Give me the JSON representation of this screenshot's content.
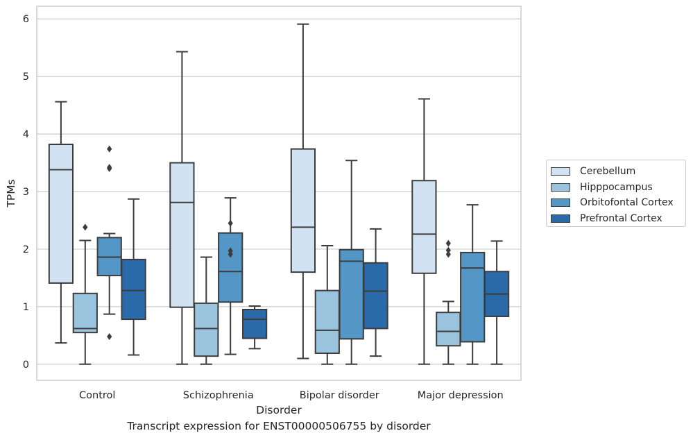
{
  "chart_data": {
    "type": "box",
    "xlabel": "Disorder",
    "ylabel": "TPMs",
    "ylim": [
      -0.28,
      6.22
    ],
    "yticks": [
      0,
      1,
      2,
      3,
      4,
      5,
      6
    ],
    "grid": "horizontal",
    "legend_position": "right",
    "categories": [
      "Control",
      "Schizophrenia",
      "Bipolar disorder",
      "Major depression"
    ],
    "series": [
      {
        "name": "Cerebellum",
        "color": "#d1e2f2",
        "boxes": [
          {
            "whislo": 0.37,
            "q1": 1.41,
            "med": 3.38,
            "q3": 3.82,
            "whishi": 4.56,
            "fliers": []
          },
          {
            "whislo": 0.0,
            "q1": 0.99,
            "med": 2.81,
            "q3": 3.5,
            "whishi": 5.43,
            "fliers": []
          },
          {
            "whislo": 0.1,
            "q1": 1.6,
            "med": 2.38,
            "q3": 3.74,
            "whishi": 5.91,
            "fliers": []
          },
          {
            "whislo": 0.0,
            "q1": 1.58,
            "med": 2.26,
            "q3": 3.19,
            "whishi": 4.61,
            "fliers": []
          }
        ]
      },
      {
        "name": "Hipppocampus",
        "color": "#9ac3dd",
        "boxes": [
          {
            "whislo": 0.0,
            "q1": 0.55,
            "med": 0.62,
            "q3": 1.23,
            "whishi": 2.15,
            "fliers": [
              2.38
            ]
          },
          {
            "whislo": 0.0,
            "q1": 0.14,
            "med": 0.62,
            "q3": 1.06,
            "whishi": 1.86,
            "fliers": []
          },
          {
            "whislo": 0.0,
            "q1": 0.19,
            "med": 0.59,
            "q3": 1.28,
            "whishi": 2.06,
            "fliers": []
          },
          {
            "whislo": 0.0,
            "q1": 0.32,
            "med": 0.57,
            "q3": 0.9,
            "whishi": 1.09,
            "fliers": [
              1.91,
              1.98,
              2.1
            ]
          }
        ]
      },
      {
        "name": "Orbitofontal Cortex",
        "color": "#5497c6",
        "boxes": [
          {
            "whislo": 0.87,
            "q1": 1.54,
            "med": 1.86,
            "q3": 2.2,
            "whishi": 2.27,
            "fliers": [
              0.48,
              3.4,
              3.42,
              3.74
            ]
          },
          {
            "whislo": 0.17,
            "q1": 1.08,
            "med": 1.61,
            "q3": 2.28,
            "whishi": 2.89,
            "fliers": [
              1.91,
              1.97,
              2.45
            ]
          },
          {
            "whislo": 0.0,
            "q1": 0.44,
            "med": 1.79,
            "q3": 1.99,
            "whishi": 3.54,
            "fliers": []
          },
          {
            "whislo": 0.0,
            "q1": 0.39,
            "med": 1.67,
            "q3": 1.94,
            "whishi": 2.77,
            "fliers": []
          }
        ]
      },
      {
        "name": "Prefrontal Cortex",
        "color": "#2a6aa8",
        "boxes": [
          {
            "whislo": 0.16,
            "q1": 0.78,
            "med": 1.28,
            "q3": 1.82,
            "whishi": 2.87,
            "fliers": []
          },
          {
            "whislo": 0.27,
            "q1": 0.45,
            "med": 0.78,
            "q3": 0.95,
            "whishi": 1.01,
            "fliers": []
          },
          {
            "whislo": 0.14,
            "q1": 0.62,
            "med": 1.27,
            "q3": 1.76,
            "whishi": 2.35,
            "fliers": []
          },
          {
            "whislo": 0.0,
            "q1": 0.83,
            "med": 1.22,
            "q3": 1.61,
            "whishi": 2.14,
            "fliers": []
          }
        ]
      }
    ]
  },
  "caption": "Transcript expression for ENST00000506755 by disorder"
}
